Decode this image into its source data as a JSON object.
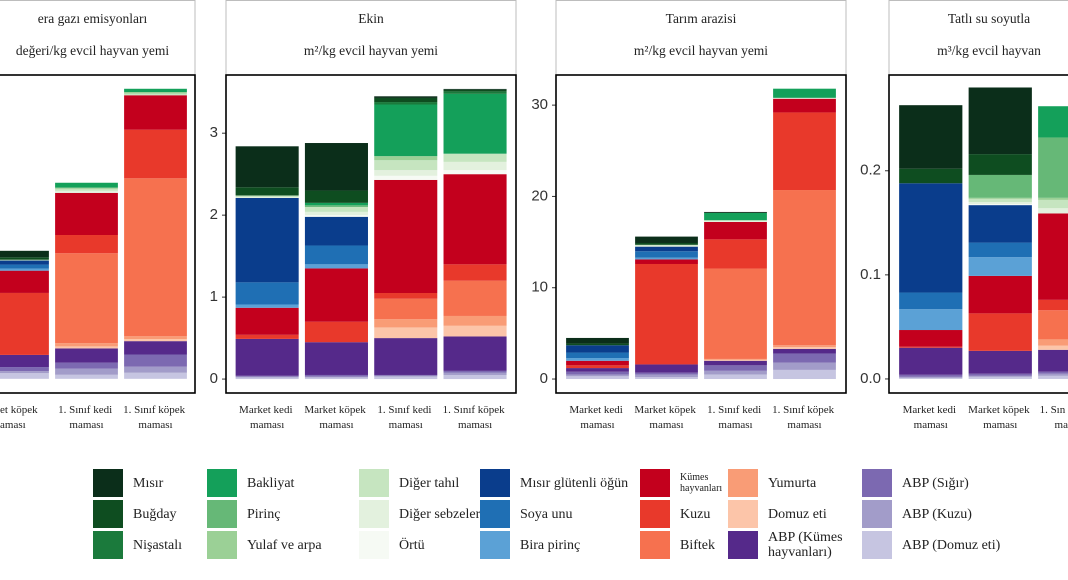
{
  "chart_data": [
    {
      "type": "bar",
      "title": "era gazı emisyonları",
      "subtitle": "değeri/kg evcil hayvan yemi",
      "categories": [
        "et köpek aması",
        "1. Sınıf kedi maması",
        "1. Sınıf köpek maması"
      ],
      "ylim": [
        -0.35,
        7.5
      ],
      "series": [
        {
          "name": "Mısır",
          "color": "#0b2e1a",
          "values": [
            0.16,
            0,
            0
          ]
        },
        {
          "name": "Buğday",
          "color": "#0e4d20",
          "values": [
            0.06,
            0,
            0
          ]
        },
        {
          "name": "Nişastalı",
          "color": "#1b7a3c",
          "values": [
            0,
            0,
            0
          ]
        },
        {
          "name": "Bakliyat",
          "color": "#14a05a",
          "values": [
            0,
            0.12,
            0.08
          ]
        },
        {
          "name": "Pirinç",
          "color": "#66b877",
          "values": [
            0,
            0,
            0
          ]
        },
        {
          "name": "Yulaf ve arpa",
          "color": "#9bd096",
          "values": [
            0,
            0.03,
            0.04
          ]
        },
        {
          "name": "Diğer tahıl",
          "color": "#c6e5c0",
          "values": [
            0.02,
            0.05,
            0.04
          ]
        },
        {
          "name": "Diğer sebzeler",
          "color": "#e3f1de",
          "values": [
            0,
            0.05,
            0
          ]
        },
        {
          "name": "Örtü",
          "color": "#f6faf4",
          "values": [
            0,
            0,
            0
          ]
        },
        {
          "name": "Mısır glütenli öğün",
          "color": "#0a3d8c",
          "values": [
            0.1,
            0,
            0
          ]
        },
        {
          "name": "Soya unu",
          "color": "#1f6fb4",
          "values": [
            0.1,
            0,
            0
          ]
        },
        {
          "name": "Bira pirinç",
          "color": "#5ba1d6",
          "values": [
            0.05,
            0,
            0
          ]
        },
        {
          "name": "Kümes hayvanları",
          "color": "#c3001d",
          "values": [
            0.55,
            1.04,
            0.85
          ]
        },
        {
          "name": "Kuzu",
          "color": "#e8392b",
          "values": [
            1.53,
            0.45,
            1.2
          ]
        },
        {
          "name": "Biftek",
          "color": "#f6714f",
          "values": [
            0,
            2.22,
            3.9
          ]
        },
        {
          "name": "Yumurta",
          "color": "#f99c76",
          "values": [
            0,
            0.08,
            0.07
          ]
        },
        {
          "name": "Domuz eti",
          "color": "#fcc5a9",
          "values": [
            0,
            0.05,
            0.05
          ]
        },
        {
          "name": "ABP (Kümes hayvanları)",
          "color": "#55298a",
          "values": [
            0.3,
            0.35,
            0.33
          ]
        },
        {
          "name": "ABP (Sığır)",
          "color": "#7c69b1",
          "values": [
            0.1,
            0.15,
            0.3
          ]
        },
        {
          "name": "ABP (Kuzu)",
          "color": "#a29cc9",
          "values": [
            0.05,
            0.15,
            0.15
          ]
        },
        {
          "name": "ABP (Domuz eti)",
          "color": "#c6c5e1",
          "values": [
            0.14,
            0.1,
            0.15
          ]
        }
      ]
    },
    {
      "type": "bar",
      "title": "Ekin",
      "subtitle": "m²/kg evcil hayvan yemi",
      "categories": [
        "Market kedi maması",
        "Market köpek maması",
        "1. Sınıf kedi maması",
        "1. Sınıf köpek maması"
      ],
      "ylim": [
        -0.17,
        3.71
      ],
      "yticks": [
        0,
        1,
        2,
        3
      ],
      "series": [
        {
          "name": "Mısır",
          "color": "#0b2e1a",
          "values": [
            0.5,
            0.58,
            0.02,
            0.01
          ]
        },
        {
          "name": "Buğday",
          "color": "#0e4d20",
          "values": [
            0.1,
            0.15,
            0.05,
            0.02
          ]
        },
        {
          "name": "Nişastalı",
          "color": "#1b7a3c",
          "values": [
            0,
            0,
            0.03,
            0.03
          ]
        },
        {
          "name": "Bakliyat",
          "color": "#14a05a",
          "values": [
            0,
            0.03,
            0.63,
            0.73
          ]
        },
        {
          "name": "Pirinç",
          "color": "#66b877",
          "values": [
            0,
            0.02,
            0,
            0
          ]
        },
        {
          "name": "Yulaf ve arpa",
          "color": "#9bd096",
          "values": [
            0,
            0,
            0.05,
            0
          ]
        },
        {
          "name": "Diğer tahıl",
          "color": "#c6e5c0",
          "values": [
            0.02,
            0.06,
            0.12,
            0.1
          ]
        },
        {
          "name": "Diğer sebzeler",
          "color": "#e3f1de",
          "values": [
            0.01,
            0.04,
            0.07,
            0.1
          ]
        },
        {
          "name": "Örtü",
          "color": "#f6faf4",
          "values": [
            0,
            0.02,
            0.05,
            0.05
          ]
        },
        {
          "name": "Mısır glütenli öğün",
          "color": "#0a3d8c",
          "values": [
            1.03,
            0.35,
            0,
            0
          ]
        },
        {
          "name": "Soya unu",
          "color": "#1f6fb4",
          "values": [
            0.27,
            0.23,
            0,
            0
          ]
        },
        {
          "name": "Bira pirinç",
          "color": "#5ba1d6",
          "values": [
            0.04,
            0.05,
            0,
            0
          ]
        },
        {
          "name": "Kümes hayvanları",
          "color": "#c3001d",
          "values": [
            0.33,
            0.65,
            1.38,
            1.1
          ]
        },
        {
          "name": "Kuzu",
          "color": "#e8392b",
          "values": [
            0.05,
            0.25,
            0.07,
            0.2
          ]
        },
        {
          "name": "Biftek",
          "color": "#f6714f",
          "values": [
            0,
            0,
            0.25,
            0.43
          ]
        },
        {
          "name": "Yumurta",
          "color": "#f99c76",
          "values": [
            0,
            0,
            0.1,
            0.12
          ]
        },
        {
          "name": "Domuz eti",
          "color": "#fcc5a9",
          "values": [
            0,
            0,
            0.13,
            0.13
          ]
        },
        {
          "name": "ABP (Kümes hayvanları)",
          "color": "#55298a",
          "values": [
            0.45,
            0.4,
            0.45,
            0.42
          ]
        },
        {
          "name": "ABP (Sığır)",
          "color": "#7c69b1",
          "values": [
            0.01,
            0.02,
            0.01,
            0.02
          ]
        },
        {
          "name": "ABP (Kuzu)",
          "color": "#a29cc9",
          "values": [
            0.01,
            0.01,
            0.01,
            0.03
          ]
        },
        {
          "name": "ABP (Domuz eti)",
          "color": "#c6c5e1",
          "values": [
            0.02,
            0.02,
            0.03,
            0.05
          ]
        }
      ]
    },
    {
      "type": "bar",
      "title": "Tarım arazisi",
      "subtitle": "m²/kg evcil hayvan yemi",
      "categories": [
        "Market kedi maması",
        "Market köpek maması",
        "1. Sınıf kedi maması",
        "1. Sınıf köpek maması"
      ],
      "ylim": [
        -1.53,
        33.3
      ],
      "yticks": [
        0,
        10,
        20,
        30
      ],
      "series": [
        {
          "name": "Mısır",
          "color": "#0b2e1a",
          "values": [
            0.6,
            0.7,
            0.1,
            0
          ]
        },
        {
          "name": "Buğday",
          "color": "#0e4d20",
          "values": [
            0.2,
            0.2,
            0,
            0
          ]
        },
        {
          "name": "Nişastalı",
          "color": "#1b7a3c",
          "values": [
            0,
            0,
            0,
            0
          ]
        },
        {
          "name": "Bakliyat",
          "color": "#14a05a",
          "values": [
            0,
            0,
            0.8,
            1.0
          ]
        },
        {
          "name": "Pirinç",
          "color": "#66b877",
          "values": [
            0,
            0,
            0,
            0
          ]
        },
        {
          "name": "Yulaf ve arpa",
          "color": "#9bd096",
          "values": [
            0,
            0,
            0,
            0
          ]
        },
        {
          "name": "Diğer tahıl",
          "color": "#c6e5c0",
          "values": [
            0,
            0.1,
            0.1,
            0.05
          ]
        },
        {
          "name": "Diğer sebzeler",
          "color": "#e3f1de",
          "values": [
            0,
            0.1,
            0.1,
            0.05
          ]
        },
        {
          "name": "Örtü",
          "color": "#f6faf4",
          "values": [
            0,
            0,
            0,
            0
          ]
        },
        {
          "name": "Mısır glütenli öğün",
          "color": "#0a3d8c",
          "values": [
            0.8,
            0.5,
            0,
            0
          ]
        },
        {
          "name": "Soya unu",
          "color": "#1f6fb4",
          "values": [
            0.6,
            0.7,
            0,
            0
          ]
        },
        {
          "name": "Bira pirinç",
          "color": "#5ba1d6",
          "values": [
            0.3,
            0.2,
            0,
            0
          ]
        },
        {
          "name": "Kümes hayvanları",
          "color": "#c3001d",
          "values": [
            0.5,
            0.5,
            1.9,
            1.5
          ]
        },
        {
          "name": "Kuzu",
          "color": "#e8392b",
          "values": [
            0.3,
            11.0,
            3.2,
            8.5
          ]
        },
        {
          "name": "Biftek",
          "color": "#f6714f",
          "values": [
            0,
            0,
            9.9,
            17.0
          ]
        },
        {
          "name": "Yumurta",
          "color": "#f99c76",
          "values": [
            0,
            0,
            0.1,
            0.2
          ]
        },
        {
          "name": "Domuz eti",
          "color": "#fcc5a9",
          "values": [
            0,
            0,
            0.1,
            0.2
          ]
        },
        {
          "name": "ABP (Kümes hayvanları)",
          "color": "#55298a",
          "values": [
            0.4,
            0.9,
            0.5,
            0.5
          ]
        },
        {
          "name": "ABP (Sığır)",
          "color": "#7c69b1",
          "values": [
            0.3,
            0.2,
            0.6,
            1.0
          ]
        },
        {
          "name": "ABP (Kuzu)",
          "color": "#a29cc9",
          "values": [
            0.2,
            0.3,
            0.4,
            0.8
          ]
        },
        {
          "name": "ABP (Domuz eti)",
          "color": "#c6c5e1",
          "values": [
            0.3,
            0.2,
            0.5,
            1.0
          ]
        }
      ]
    },
    {
      "type": "bar",
      "title": "Tatlı su soyutla",
      "subtitle": "m³/kg evcil hayvan",
      "categories": [
        "Market kedi maması",
        "Market köpek maması",
        "1. Sın ma"
      ],
      "ylim": [
        -0.0135,
        0.292
      ],
      "yticks": [
        {
          "value": 0,
          "label": "0.0"
        },
        0.1,
        0.2
      ],
      "series": [
        {
          "name": "Mısır",
          "color": "#0b2e1a",
          "values": [
            0.061,
            0.064,
            0
          ]
        },
        {
          "name": "Buğday",
          "color": "#0e4d20",
          "values": [
            0.014,
            0.02,
            0
          ]
        },
        {
          "name": "Nişastalı",
          "color": "#1b7a3c",
          "values": [
            0,
            0,
            0
          ]
        },
        {
          "name": "Bakliyat",
          "color": "#14a05a",
          "values": [
            0,
            0,
            0.03
          ]
        },
        {
          "name": "Pirinç",
          "color": "#66b877",
          "values": [
            0,
            0.022,
            0.058
          ]
        },
        {
          "name": "Yulaf ve arpa",
          "color": "#9bd096",
          "values": [
            0,
            0.001,
            0.002
          ]
        },
        {
          "name": "Diğer tahıl",
          "color": "#c6e5c0",
          "values": [
            0,
            0.003,
            0.008
          ]
        },
        {
          "name": "Diğer sebzeler",
          "color": "#e3f1de",
          "values": [
            0,
            0.002,
            0.005
          ]
        },
        {
          "name": "Örtü",
          "color": "#f6faf4",
          "values": [
            0,
            0.001,
            0
          ]
        },
        {
          "name": "Mısır glütenli öğün",
          "color": "#0a3d8c",
          "values": [
            0.105,
            0.036,
            0
          ]
        },
        {
          "name": "Soya unu",
          "color": "#1f6fb4",
          "values": [
            0.016,
            0.014,
            0
          ]
        },
        {
          "name": "Bira pirinç",
          "color": "#5ba1d6",
          "values": [
            0.02,
            0.018,
            0
          ]
        },
        {
          "name": "Kümes hayvanları",
          "color": "#c3001d",
          "values": [
            0.016,
            0.036,
            0.083
          ]
        },
        {
          "name": "Kuzu",
          "color": "#e8392b",
          "values": [
            0.001,
            0.036,
            0.01
          ]
        },
        {
          "name": "Biftek",
          "color": "#f6714f",
          "values": [
            0,
            0,
            0.028
          ]
        },
        {
          "name": "Yumurta",
          "color": "#f99c76",
          "values": [
            0,
            0,
            0.006
          ]
        },
        {
          "name": "Domuz eti",
          "color": "#fcc5a9",
          "values": [
            0,
            0,
            0.004
          ]
        },
        {
          "name": "ABP (Kümes hayvanları)",
          "color": "#55298a",
          "values": [
            0.026,
            0.022,
            0.021
          ]
        },
        {
          "name": "ABP (Sığır)",
          "color": "#7c69b1",
          "values": [
            0.002,
            0.002,
            0.002
          ]
        },
        {
          "name": "ABP (Kuzu)",
          "color": "#a29cc9",
          "values": [
            0.001,
            0.001,
            0.002
          ]
        },
        {
          "name": "ABP (Domuz eti)",
          "color": "#c6c5e1",
          "values": [
            0.001,
            0.002,
            0.003
          ]
        }
      ]
    }
  ]
}
